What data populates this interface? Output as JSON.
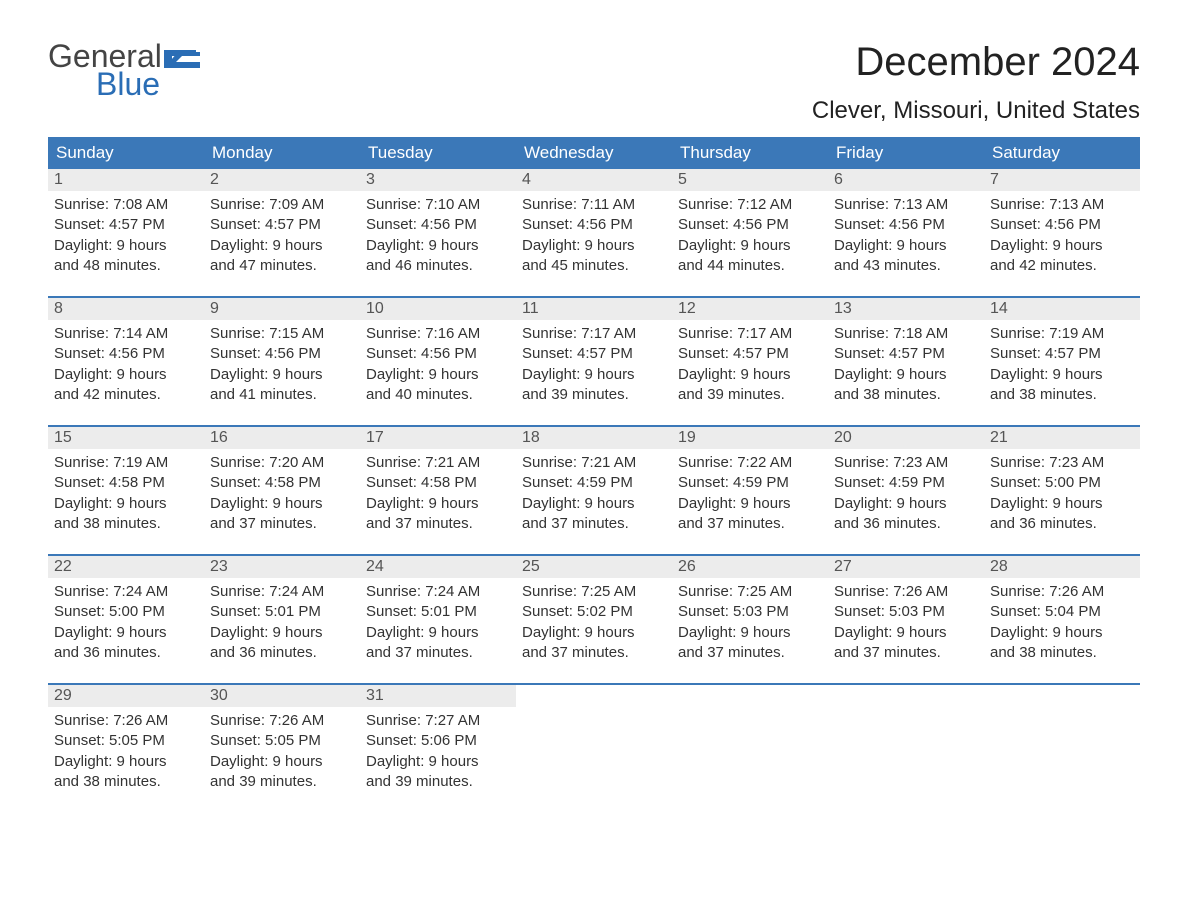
{
  "brand": {
    "part1": "General",
    "part2": "Blue",
    "flag_color": "#2a6db5"
  },
  "title": "December 2024",
  "location": "Clever, Missouri, United States",
  "colors": {
    "header_bg": "#3b78b8",
    "header_text": "#ffffff",
    "daynum_bg": "#ececec",
    "text": "#333333",
    "rule": "#3b78b8"
  },
  "day_labels": [
    "Sunday",
    "Monday",
    "Tuesday",
    "Wednesday",
    "Thursday",
    "Friday",
    "Saturday"
  ],
  "weeks": [
    [
      {
        "n": "1",
        "sr": "Sunrise: 7:08 AM",
        "ss": "Sunset: 4:57 PM",
        "d1": "Daylight: 9 hours",
        "d2": "and 48 minutes."
      },
      {
        "n": "2",
        "sr": "Sunrise: 7:09 AM",
        "ss": "Sunset: 4:57 PM",
        "d1": "Daylight: 9 hours",
        "d2": "and 47 minutes."
      },
      {
        "n": "3",
        "sr": "Sunrise: 7:10 AM",
        "ss": "Sunset: 4:56 PM",
        "d1": "Daylight: 9 hours",
        "d2": "and 46 minutes."
      },
      {
        "n": "4",
        "sr": "Sunrise: 7:11 AM",
        "ss": "Sunset: 4:56 PM",
        "d1": "Daylight: 9 hours",
        "d2": "and 45 minutes."
      },
      {
        "n": "5",
        "sr": "Sunrise: 7:12 AM",
        "ss": "Sunset: 4:56 PM",
        "d1": "Daylight: 9 hours",
        "d2": "and 44 minutes."
      },
      {
        "n": "6",
        "sr": "Sunrise: 7:13 AM",
        "ss": "Sunset: 4:56 PM",
        "d1": "Daylight: 9 hours",
        "d2": "and 43 minutes."
      },
      {
        "n": "7",
        "sr": "Sunrise: 7:13 AM",
        "ss": "Sunset: 4:56 PM",
        "d1": "Daylight: 9 hours",
        "d2": "and 42 minutes."
      }
    ],
    [
      {
        "n": "8",
        "sr": "Sunrise: 7:14 AM",
        "ss": "Sunset: 4:56 PM",
        "d1": "Daylight: 9 hours",
        "d2": "and 42 minutes."
      },
      {
        "n": "9",
        "sr": "Sunrise: 7:15 AM",
        "ss": "Sunset: 4:56 PM",
        "d1": "Daylight: 9 hours",
        "d2": "and 41 minutes."
      },
      {
        "n": "10",
        "sr": "Sunrise: 7:16 AM",
        "ss": "Sunset: 4:56 PM",
        "d1": "Daylight: 9 hours",
        "d2": "and 40 minutes."
      },
      {
        "n": "11",
        "sr": "Sunrise: 7:17 AM",
        "ss": "Sunset: 4:57 PM",
        "d1": "Daylight: 9 hours",
        "d2": "and 39 minutes."
      },
      {
        "n": "12",
        "sr": "Sunrise: 7:17 AM",
        "ss": "Sunset: 4:57 PM",
        "d1": "Daylight: 9 hours",
        "d2": "and 39 minutes."
      },
      {
        "n": "13",
        "sr": "Sunrise: 7:18 AM",
        "ss": "Sunset: 4:57 PM",
        "d1": "Daylight: 9 hours",
        "d2": "and 38 minutes."
      },
      {
        "n": "14",
        "sr": "Sunrise: 7:19 AM",
        "ss": "Sunset: 4:57 PM",
        "d1": "Daylight: 9 hours",
        "d2": "and 38 minutes."
      }
    ],
    [
      {
        "n": "15",
        "sr": "Sunrise: 7:19 AM",
        "ss": "Sunset: 4:58 PM",
        "d1": "Daylight: 9 hours",
        "d2": "and 38 minutes."
      },
      {
        "n": "16",
        "sr": "Sunrise: 7:20 AM",
        "ss": "Sunset: 4:58 PM",
        "d1": "Daylight: 9 hours",
        "d2": "and 37 minutes."
      },
      {
        "n": "17",
        "sr": "Sunrise: 7:21 AM",
        "ss": "Sunset: 4:58 PM",
        "d1": "Daylight: 9 hours",
        "d2": "and 37 minutes."
      },
      {
        "n": "18",
        "sr": "Sunrise: 7:21 AM",
        "ss": "Sunset: 4:59 PM",
        "d1": "Daylight: 9 hours",
        "d2": "and 37 minutes."
      },
      {
        "n": "19",
        "sr": "Sunrise: 7:22 AM",
        "ss": "Sunset: 4:59 PM",
        "d1": "Daylight: 9 hours",
        "d2": "and 37 minutes."
      },
      {
        "n": "20",
        "sr": "Sunrise: 7:23 AM",
        "ss": "Sunset: 4:59 PM",
        "d1": "Daylight: 9 hours",
        "d2": "and 36 minutes."
      },
      {
        "n": "21",
        "sr": "Sunrise: 7:23 AM",
        "ss": "Sunset: 5:00 PM",
        "d1": "Daylight: 9 hours",
        "d2": "and 36 minutes."
      }
    ],
    [
      {
        "n": "22",
        "sr": "Sunrise: 7:24 AM",
        "ss": "Sunset: 5:00 PM",
        "d1": "Daylight: 9 hours",
        "d2": "and 36 minutes."
      },
      {
        "n": "23",
        "sr": "Sunrise: 7:24 AM",
        "ss": "Sunset: 5:01 PM",
        "d1": "Daylight: 9 hours",
        "d2": "and 36 minutes."
      },
      {
        "n": "24",
        "sr": "Sunrise: 7:24 AM",
        "ss": "Sunset: 5:01 PM",
        "d1": "Daylight: 9 hours",
        "d2": "and 37 minutes."
      },
      {
        "n": "25",
        "sr": "Sunrise: 7:25 AM",
        "ss": "Sunset: 5:02 PM",
        "d1": "Daylight: 9 hours",
        "d2": "and 37 minutes."
      },
      {
        "n": "26",
        "sr": "Sunrise: 7:25 AM",
        "ss": "Sunset: 5:03 PM",
        "d1": "Daylight: 9 hours",
        "d2": "and 37 minutes."
      },
      {
        "n": "27",
        "sr": "Sunrise: 7:26 AM",
        "ss": "Sunset: 5:03 PM",
        "d1": "Daylight: 9 hours",
        "d2": "and 37 minutes."
      },
      {
        "n": "28",
        "sr": "Sunrise: 7:26 AM",
        "ss": "Sunset: 5:04 PM",
        "d1": "Daylight: 9 hours",
        "d2": "and 38 minutes."
      }
    ],
    [
      {
        "n": "29",
        "sr": "Sunrise: 7:26 AM",
        "ss": "Sunset: 5:05 PM",
        "d1": "Daylight: 9 hours",
        "d2": "and 38 minutes."
      },
      {
        "n": "30",
        "sr": "Sunrise: 7:26 AM",
        "ss": "Sunset: 5:05 PM",
        "d1": "Daylight: 9 hours",
        "d2": "and 39 minutes."
      },
      {
        "n": "31",
        "sr": "Sunrise: 7:27 AM",
        "ss": "Sunset: 5:06 PM",
        "d1": "Daylight: 9 hours",
        "d2": "and 39 minutes."
      },
      null,
      null,
      null,
      null
    ]
  ]
}
